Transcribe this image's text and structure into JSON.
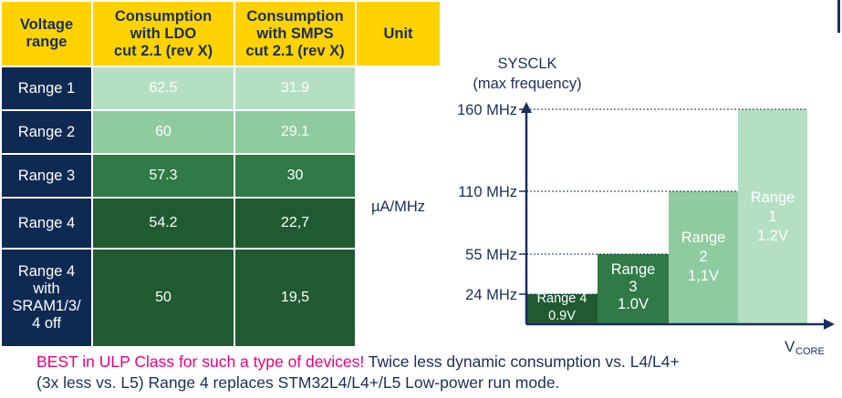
{
  "table": {
    "headers": [
      "Voltage range",
      "Consumption with LDO cut 2.1 (rev X)",
      "Consumption with SMPS cut 2.1 (rev X)",
      "Unit"
    ],
    "header_lines": [
      [
        "Voltage",
        "range"
      ],
      [
        "Consumption",
        "with LDO",
        "cut 2.1 (rev X)"
      ],
      [
        "Consumption",
        "with SMPS",
        "cut 2.1 (rev X)"
      ],
      [
        "Unit"
      ]
    ],
    "rows": [
      {
        "range": [
          "Range 1"
        ],
        "ldo": "62.5",
        "smps": "31.9"
      },
      {
        "range": [
          "Range 2"
        ],
        "ldo": "60",
        "smps": "29.1"
      },
      {
        "range": [
          "Range 3"
        ],
        "ldo": "57.3",
        "smps": "30"
      },
      {
        "range": [
          "Range 4"
        ],
        "ldo": "54.2",
        "smps": "22,7"
      },
      {
        "range": [
          "Range 4",
          "with",
          "SRAM1/3/",
          "4 off"
        ],
        "ldo": "50",
        "smps": "19,5"
      }
    ],
    "unit": "µA/MHz"
  },
  "chart_data": {
    "type": "bar",
    "ylabel_lines": [
      "SYSCLK",
      "(max frequency)"
    ],
    "xlabel": "V",
    "xlabel_sub": "CORE",
    "yticks": [
      "24 MHz",
      "55 MHz",
      "110 MHz",
      "160 MHz"
    ],
    "ytick_values": [
      24,
      55,
      110,
      160
    ],
    "bars": [
      {
        "label_lines": [
          "Range 4",
          "0.9V"
        ],
        "value": 24,
        "color": "#1f5a30",
        "text_color": "#ffffff"
      },
      {
        "label_lines": [
          "Range",
          "3",
          "1.0V"
        ],
        "value": 55,
        "color": "#2f7a46",
        "text_color": "#ffffff"
      },
      {
        "label_lines": [
          "Range",
          "2",
          "1,1V"
        ],
        "value": 110,
        "color": "#8ecb9e",
        "text_color": "#ffffff"
      },
      {
        "label_lines": [
          "Range",
          "1",
          "1.2V"
        ],
        "value": 160,
        "color": "#b5dfc3",
        "text_color": "#ffffff"
      }
    ]
  },
  "footer": {
    "highlight": "BEST in ULP Class for such a type of devices!",
    "line1_rest": " Twice less dynamic consumption vs. L4/L4+",
    "line2": "(3x less vs. L5) Range 4 replaces STM32L4/L4+/L5 Low-power run mode."
  },
  "colors": {
    "header_bg": "#ffd200",
    "navy": "#0f2a52",
    "highlight": "#e6007e"
  }
}
